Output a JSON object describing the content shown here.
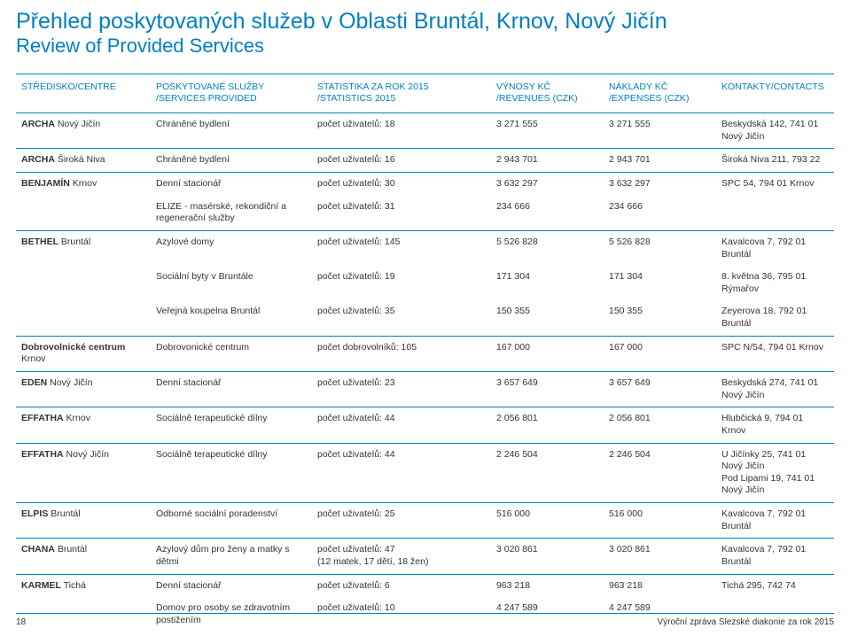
{
  "title": {
    "main": "Přehled poskytovaných služeb v Oblasti Bruntál, Krnov, Nový Jičín",
    "sub": "Review of Provided Services"
  },
  "colors": {
    "accent": "#0080c0",
    "text": "#333333",
    "bg": "#ffffff"
  },
  "headers": {
    "centre": "STŘEDISKO/CENTRE",
    "service_l1": "POSKYTOVANÉ SLUŽBY",
    "service_l2": "/SERVICES PROVIDED",
    "stats_l1": "STATISTIKA ZA ROK 2015",
    "stats_l2": "/STATISTICS 2015",
    "rev_l1": "VÝNOSY KČ",
    "rev_l2": "/REVENUES (CZK)",
    "exp_l1": "NÁKLADY KČ",
    "exp_l2": "/EXPENSES (CZK)",
    "contact": "KONTAKTY/CONTACTS"
  },
  "rows": [
    {
      "centre_b": "ARCHA",
      "centre_r": " Nový Jičín",
      "service": "Chráněné bydlení",
      "stats": "počet uživatelů: 18",
      "rev": "3 271 555",
      "exp": "3 271 555",
      "contact": "Beskydská 142, 741 01 Nový Jičín",
      "sep": true
    },
    {
      "centre_b": "ARCHA",
      "centre_r": " Široká Niva",
      "service": "Chráněné bydlení",
      "stats": "počet uživatelů: 16",
      "rev": "2 943 701",
      "exp": "2 943 701",
      "contact": "Široká Niva 211, 793 22",
      "sep": true
    },
    {
      "centre_b": "BENJAMÍN",
      "centre_r": " Krnov",
      "service": "Denní stacionář",
      "stats": "počet uživatelů: 30",
      "rev": "3 632 297",
      "exp": "3 632 297",
      "contact": "SPC 54, 794 01 Krnov",
      "sep": false
    },
    {
      "centre_b": "",
      "centre_r": "",
      "service": "ELIZE -  masérské, rekondiční a regenerační služby",
      "stats": "počet uživatelů: 31",
      "rev": "234 666",
      "exp": "234 666",
      "contact": "",
      "sep": true
    },
    {
      "centre_b": "BETHEL",
      "centre_r": " Bruntál",
      "service": "Azylové domy",
      "stats": "počet uživatelů: 145",
      "rev": "5 526 828",
      "exp": "5 526 828",
      "contact": "Kavalcova 7, 792 01 Bruntál",
      "sep": false
    },
    {
      "centre_b": "",
      "centre_r": "",
      "service": "Sociální byty v Bruntále",
      "stats": "počet uživatelů: 19",
      "rev": "171 304",
      "exp": "171 304",
      "contact": "8. května 36, 795 01 Rýmařov",
      "sep": false
    },
    {
      "centre_b": "",
      "centre_r": "",
      "service": "Veřejná koupelna Bruntál",
      "stats": "počet uživatelů: 35",
      "rev": "150 355",
      "exp": "150 355",
      "contact": "Zeyerova 18, 792 01 Bruntál",
      "sep": true
    },
    {
      "centre_b": "Dobrovolnické centrum",
      "centre_r": " Krnov",
      "service": "Dobrovonické centrum",
      "stats": "počet dobrovolníků: 105",
      "rev": "167 000",
      "exp": "167 000",
      "contact": "SPC N/54, 794 01 Krnov",
      "sep": true
    },
    {
      "centre_b": "EDEN",
      "centre_r": " Nový Jičín",
      "service": "Denní stacionář",
      "stats": "počet uživatelů: 23",
      "rev": "3 657 649",
      "exp": "3 657 649",
      "contact": "Beskydská 274, 741 01 Nový Jičín",
      "sep": true
    },
    {
      "centre_b": "EFFATHA",
      "centre_r": " Krnov",
      "service": "Sociálně terapeutické dílny",
      "stats": "počet uživatelů: 44",
      "rev": "2 056 801",
      "exp": "2 056 801",
      "contact": "Hlubčická 9, 794 01 Krnov",
      "sep": true
    },
    {
      "centre_b": "EFFATHA",
      "centre_r": " Nový Jičín",
      "service": "Sociálně terapeutické dílny",
      "stats": "počet uživatelů: 44",
      "rev": "2 246 504",
      "exp": "2 246 504",
      "contact": "U Jičínky 25, 741 01 Nový Jičín\nPod Lipami 19, 741 01 Nový Jičín",
      "sep": true
    },
    {
      "centre_b": "ELPIS",
      "centre_r": " Bruntál",
      "service": "Odborné sociální poradenství",
      "stats": "počet uživatelů: 25",
      "rev": "516 000",
      "exp": "516 000",
      "contact": "Kavalcova 7, 792 01 Bruntál",
      "sep": true
    },
    {
      "centre_b": "CHANA",
      "centre_r": " Bruntál",
      "service": "Azylový dům pro ženy a matky s dětmi",
      "stats": "počet uživatelů: 47\n(12 matek, 17 dětí, 18 žen)",
      "rev": "3 020 861",
      "exp": "3 020 861",
      "contact": "Kavalcova 7, 792 01 Bruntál",
      "sep": true
    },
    {
      "centre_b": "KARMEL",
      "centre_r": " Tichá",
      "service": "Denní stacionář",
      "stats": "počet uživatelů: 6",
      "rev": "963 218",
      "exp": "963 218",
      "contact": "Tichá 295, 742 74",
      "sep": false
    },
    {
      "centre_b": "",
      "centre_r": "",
      "service": "Domov pro osoby se zdravotním postižením",
      "stats": "počet uživatelů: 10",
      "rev": "4 247 589",
      "exp": "4 247 589",
      "contact": "",
      "sep": false
    }
  ],
  "footer": {
    "page": "18",
    "right": "Výroční zpráva Slezské diakonie za rok 2015"
  }
}
